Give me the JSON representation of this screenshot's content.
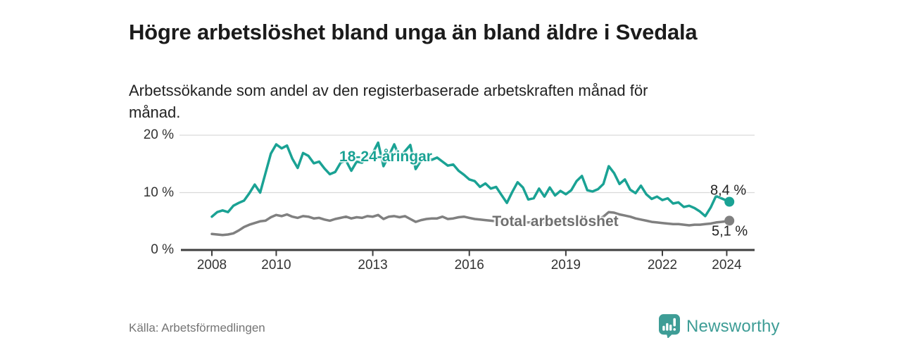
{
  "header": {
    "title": "Högre arbetslöshet bland unga än bland äldre i Svedala",
    "subtitle": "Arbetssökande som andel av den registerbaserade arbetskraften månad för månad."
  },
  "chart_data": {
    "type": "line",
    "unit": "%",
    "grid": true,
    "legend_position": "inline-labels",
    "ylim": [
      0,
      20
    ],
    "xlim": [
      2008,
      2024.5
    ],
    "yticks": [
      {
        "value": 0,
        "label": "0 %"
      },
      {
        "value": 10,
        "label": "10 %"
      },
      {
        "value": 20,
        "label": "20 %"
      }
    ],
    "xticks": [
      {
        "year": 2008,
        "label": "2008"
      },
      {
        "year": 2010,
        "label": "2010"
      },
      {
        "year": 2013,
        "label": "2013"
      },
      {
        "year": 2016,
        "label": "2016"
      },
      {
        "year": 2019,
        "label": "2019"
      },
      {
        "year": 2022,
        "label": "2022"
      },
      {
        "year": 2024,
        "label": "2024"
      }
    ],
    "x": [
      2008.0,
      2008.167,
      2008.333,
      2008.5,
      2008.667,
      2008.833,
      2009.0,
      2009.167,
      2009.333,
      2009.5,
      2009.667,
      2009.833,
      2010.0,
      2010.167,
      2010.333,
      2010.5,
      2010.667,
      2010.833,
      2011.0,
      2011.167,
      2011.333,
      2011.5,
      2011.667,
      2011.833,
      2012.0,
      2012.167,
      2012.333,
      2012.5,
      2012.667,
      2012.833,
      2013.0,
      2013.167,
      2013.333,
      2013.5,
      2013.667,
      2013.833,
      2014.0,
      2014.167,
      2014.333,
      2014.5,
      2014.667,
      2014.833,
      2015.0,
      2015.167,
      2015.333,
      2015.5,
      2015.667,
      2015.833,
      2016.0,
      2016.167,
      2016.333,
      2016.5,
      2016.667,
      2016.833,
      2017.0,
      2017.167,
      2017.333,
      2017.5,
      2017.667,
      2017.833,
      2018.0,
      2018.167,
      2018.333,
      2018.5,
      2018.667,
      2018.833,
      2019.0,
      2019.167,
      2019.333,
      2019.5,
      2019.667,
      2019.833,
      2020.0,
      2020.167,
      2020.333,
      2020.5,
      2020.667,
      2020.833,
      2021.0,
      2021.167,
      2021.333,
      2021.5,
      2021.667,
      2021.833,
      2022.0,
      2022.167,
      2022.333,
      2022.5,
      2022.667,
      2022.833,
      2023.0,
      2023.167,
      2023.333,
      2023.5,
      2023.667,
      2023.833,
      2024.0,
      2024.083
    ],
    "series": [
      {
        "id": "youth",
        "name": "18-24-åringar",
        "color": "#1aa294",
        "end_label": "8,4 %",
        "end_value": 8.4,
        "values": [
          5.8,
          6.6,
          6.9,
          6.6,
          7.7,
          8.2,
          8.6,
          9.9,
          11.4,
          10.0,
          13.4,
          16.8,
          18.4,
          17.7,
          18.2,
          15.9,
          14.3,
          16.9,
          16.4,
          15.1,
          15.4,
          14.2,
          13.2,
          13.6,
          15.2,
          15.6,
          13.8,
          15.4,
          15.2,
          16.4,
          16.9,
          18.7,
          14.6,
          16.4,
          18.4,
          16.1,
          17.2,
          18.3,
          14.1,
          15.6,
          16.3,
          15.7,
          16.1,
          15.4,
          14.7,
          14.9,
          13.8,
          13.1,
          12.3,
          12.0,
          11.0,
          11.6,
          10.7,
          11.0,
          9.6,
          8.2,
          10.1,
          11.8,
          10.9,
          8.8,
          9.0,
          10.7,
          9.3,
          10.9,
          9.5,
          10.3,
          9.7,
          10.4,
          12.0,
          12.9,
          10.4,
          10.2,
          10.6,
          11.5,
          14.6,
          13.4,
          11.5,
          12.3,
          10.5,
          9.9,
          11.2,
          9.7,
          8.9,
          9.3,
          8.7,
          9.0,
          8.1,
          8.3,
          7.5,
          7.7,
          7.3,
          6.7,
          5.9,
          7.4,
          9.4,
          9.0,
          8.6,
          8.4
        ]
      },
      {
        "id": "total",
        "name": "Total arbetslöshet",
        "color": "#808080",
        "end_label": "5,1 %",
        "end_value": 5.1,
        "values": [
          2.8,
          2.7,
          2.6,
          2.7,
          2.9,
          3.4,
          4.0,
          4.4,
          4.7,
          5.0,
          5.1,
          5.7,
          6.1,
          5.9,
          6.2,
          5.8,
          5.6,
          5.9,
          5.8,
          5.5,
          5.6,
          5.3,
          5.1,
          5.4,
          5.6,
          5.8,
          5.5,
          5.7,
          5.6,
          5.9,
          5.8,
          6.1,
          5.4,
          5.8,
          5.9,
          5.7,
          5.9,
          5.4,
          4.9,
          5.2,
          5.4,
          5.5,
          5.5,
          5.8,
          5.4,
          5.5,
          5.7,
          5.8,
          5.6,
          5.4,
          5.3,
          5.2,
          5.1,
          5.0,
          4.9,
          4.8,
          5.0,
          5.1,
          4.9,
          4.8,
          4.9,
          5.0,
          4.8,
          4.7,
          4.6,
          4.7,
          4.8,
          4.9,
          5.0,
          4.9,
          5.0,
          5.2,
          5.4,
          5.8,
          6.6,
          6.5,
          6.2,
          6.0,
          5.8,
          5.5,
          5.3,
          5.1,
          4.9,
          4.8,
          4.7,
          4.6,
          4.5,
          4.5,
          4.4,
          4.3,
          4.4,
          4.4,
          4.5,
          4.6,
          4.8,
          4.9,
          5.0,
          5.1
        ]
      }
    ]
  },
  "colors": {
    "axis": "#3f3f3f",
    "grid": "#d9d9d9",
    "tick_text": "#333333",
    "accent_teal": "#1aa294",
    "line_gray": "#808080"
  },
  "footer": {
    "source": "Källa: Arbetsförmedlingen",
    "brand": "Newsworthy",
    "brand_color": "#3e9d96"
  }
}
